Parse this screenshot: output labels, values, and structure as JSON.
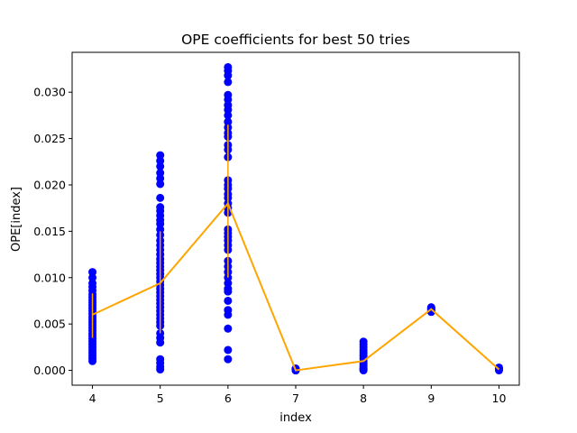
{
  "chart_data": {
    "type": "scatter",
    "title": "OPE coefficients for best 50 tries",
    "xlabel": "index",
    "ylabel": "OPE[index]",
    "xlim": [
      3.7,
      10.3
    ],
    "ylim": [
      -0.0016,
      0.0343
    ],
    "xticks": [
      4,
      5,
      6,
      7,
      8,
      9,
      10
    ],
    "yticks": [
      "0.000",
      "0.005",
      "0.010",
      "0.015",
      "0.020",
      "0.025",
      "0.030"
    ],
    "legend": "none",
    "grid": false,
    "colors": {
      "points": "#0000ff",
      "mean_line": "#ffa500"
    },
    "scatter": [
      {
        "x": 4,
        "y": [
          0.0106,
          0.01,
          0.0094,
          0.009,
          0.0086,
          0.0082,
          0.0079,
          0.0076,
          0.0073,
          0.007,
          0.0067,
          0.0064,
          0.0061,
          0.0058,
          0.0055,
          0.0052,
          0.0049,
          0.0046,
          0.0043,
          0.004,
          0.0037,
          0.0034,
          0.0031,
          0.0028,
          0.0025,
          0.0022,
          0.0019,
          0.0016,
          0.0013,
          0.001
        ]
      },
      {
        "x": 5,
        "y": [
          0.0232,
          0.0226,
          0.022,
          0.0213,
          0.0207,
          0.0201,
          0.0186,
          0.0176,
          0.0172,
          0.0167,
          0.0162,
          0.0158,
          0.0152,
          0.0146,
          0.014,
          0.0135,
          0.013,
          0.0125,
          0.012,
          0.0116,
          0.0112,
          0.0108,
          0.0104,
          0.01,
          0.0096,
          0.0092,
          0.0088,
          0.0084,
          0.008,
          0.0076,
          0.0072,
          0.0068,
          0.0064,
          0.006,
          0.0056,
          0.0052,
          0.0048,
          0.004,
          0.0035,
          0.003,
          0.0012,
          0.0008,
          0.0004,
          0.0001
        ]
      },
      {
        "x": 6,
        "y": [
          0.0327,
          0.0323,
          0.0318,
          0.0311,
          0.0297,
          0.0292,
          0.0286,
          0.0281,
          0.0275,
          0.0268,
          0.0262,
          0.0256,
          0.0252,
          0.0243,
          0.0238,
          0.023,
          0.0205,
          0.02,
          0.0196,
          0.019,
          0.0186,
          0.018,
          0.0175,
          0.017,
          0.0152,
          0.0148,
          0.0144,
          0.014,
          0.0135,
          0.013,
          0.0118,
          0.0112,
          0.0106,
          0.01,
          0.0094,
          0.0088,
          0.0085,
          0.0075,
          0.0065,
          0.006,
          0.0045,
          0.0022,
          0.0012
        ]
      },
      {
        "x": 7,
        "y": [
          0.0002,
          0.0001,
          0.0,
          0.0,
          0.0001,
          0.0
        ]
      },
      {
        "x": 8,
        "y": [
          0.0031,
          0.0028,
          0.0025,
          0.0022,
          0.0019,
          0.0016,
          0.0013,
          0.001,
          0.0008,
          0.0006,
          0.0004,
          0.0002,
          0.0001,
          0.0
        ]
      },
      {
        "x": 9,
        "y": [
          0.0068,
          0.0067,
          0.0066,
          0.0065,
          0.0064,
          0.0063
        ]
      },
      {
        "x": 10,
        "y": [
          0.0003,
          0.0002,
          0.0001,
          0.0
        ]
      }
    ],
    "mean_line": {
      "x": [
        4,
        5,
        6,
        7,
        8,
        9,
        10
      ],
      "y": [
        0.006,
        0.0094,
        0.018,
        0.0,
        0.001,
        0.0066,
        0.0001
      ]
    },
    "error_bars": [
      {
        "x": 4,
        "low": 0.0035,
        "high": 0.0083
      },
      {
        "x": 5,
        "low": 0.004,
        "high": 0.015
      },
      {
        "x": 6,
        "low": 0.01,
        "high": 0.0265
      }
    ]
  }
}
